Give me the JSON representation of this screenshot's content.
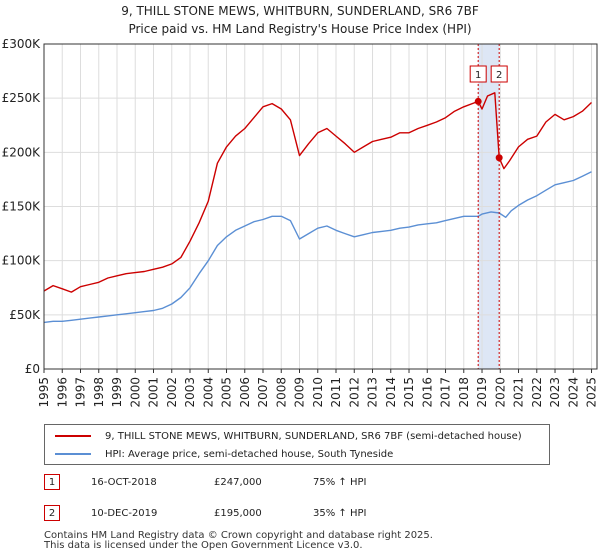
{
  "chart_data": {
    "type": "line",
    "title": "9, THILL STONE MEWS, WHITBURN, SUNDERLAND, SR6 7BF",
    "subtitle": "Price paid vs. HM Land Registry's House Price Index (HPI)",
    "xlim": [
      1995,
      2025.3
    ],
    "ylim": [
      0,
      300000
    ],
    "x_tick_labels": [
      "1995",
      "1996",
      "1997",
      "1998",
      "1999",
      "2000",
      "2001",
      "2002",
      "2003",
      "2004",
      "2005",
      "2006",
      "2007",
      "2008",
      "2009",
      "2010",
      "2011",
      "2012",
      "2013",
      "2014",
      "2015",
      "2016",
      "2017",
      "2018",
      "2019",
      "2020",
      "2021",
      "2022",
      "2023",
      "2024",
      "2025"
    ],
    "y_ticks": [
      0,
      50000,
      100000,
      150000,
      200000,
      250000,
      300000
    ],
    "y_tick_labels": [
      "£0",
      "£50K",
      "£100K",
      "£150K",
      "£200K",
      "£250K",
      "£300K"
    ],
    "sale_band": [
      2018.79,
      2019.94
    ],
    "series": [
      {
        "name": "9, THILL STONE MEWS, WHITBURN, SUNDERLAND, SR6 7BF (semi-detached house)",
        "color": "#cc0000",
        "points": [
          [
            1995.0,
            72000
          ],
          [
            1995.5,
            77000
          ],
          [
            1996.0,
            74000
          ],
          [
            1996.5,
            71000
          ],
          [
            1997.0,
            76000
          ],
          [
            1997.5,
            78000
          ],
          [
            1998.0,
            80000
          ],
          [
            1998.5,
            84000
          ],
          [
            1999.0,
            86000
          ],
          [
            1999.5,
            88000
          ],
          [
            2000.0,
            89000
          ],
          [
            2000.5,
            90000
          ],
          [
            2001.0,
            92000
          ],
          [
            2001.5,
            94000
          ],
          [
            2002.0,
            97000
          ],
          [
            2002.5,
            103000
          ],
          [
            2003.0,
            118000
          ],
          [
            2003.5,
            135000
          ],
          [
            2004.0,
            155000
          ],
          [
            2004.5,
            190000
          ],
          [
            2005.0,
            205000
          ],
          [
            2005.5,
            215000
          ],
          [
            2006.0,
            222000
          ],
          [
            2006.5,
            232000
          ],
          [
            2007.0,
            242000
          ],
          [
            2007.5,
            245000
          ],
          [
            2008.0,
            240000
          ],
          [
            2008.5,
            230000
          ],
          [
            2009.0,
            197000
          ],
          [
            2009.5,
            208000
          ],
          [
            2010.0,
            218000
          ],
          [
            2010.5,
            222000
          ],
          [
            2011.0,
            215000
          ],
          [
            2011.5,
            208000
          ],
          [
            2012.0,
            200000
          ],
          [
            2012.5,
            205000
          ],
          [
            2013.0,
            210000
          ],
          [
            2013.5,
            212000
          ],
          [
            2014.0,
            214000
          ],
          [
            2014.5,
            218000
          ],
          [
            2015.0,
            218000
          ],
          [
            2015.5,
            222000
          ],
          [
            2016.0,
            225000
          ],
          [
            2016.5,
            228000
          ],
          [
            2017.0,
            232000
          ],
          [
            2017.5,
            238000
          ],
          [
            2018.0,
            242000
          ],
          [
            2018.79,
            247000
          ],
          [
            2019.0,
            240000
          ],
          [
            2019.3,
            252000
          ],
          [
            2019.7,
            255000
          ],
          [
            2019.94,
            195000
          ],
          [
            2020.2,
            185000
          ],
          [
            2020.5,
            192000
          ],
          [
            2021.0,
            205000
          ],
          [
            2021.5,
            212000
          ],
          [
            2022.0,
            215000
          ],
          [
            2022.5,
            228000
          ],
          [
            2023.0,
            235000
          ],
          [
            2023.5,
            230000
          ],
          [
            2024.0,
            233000
          ],
          [
            2024.5,
            238000
          ],
          [
            2025.0,
            246000
          ]
        ]
      },
      {
        "name": "HPI: Average price, semi-detached house, South Tyneside",
        "color": "#5b8fd4",
        "points": [
          [
            1995.0,
            43000
          ],
          [
            1995.5,
            44000
          ],
          [
            1996.0,
            44000
          ],
          [
            1996.5,
            45000
          ],
          [
            1997.0,
            46000
          ],
          [
            1997.5,
            47000
          ],
          [
            1998.0,
            48000
          ],
          [
            1998.5,
            49000
          ],
          [
            1999.0,
            50000
          ],
          [
            1999.5,
            51000
          ],
          [
            2000.0,
            52000
          ],
          [
            2000.5,
            53000
          ],
          [
            2001.0,
            54000
          ],
          [
            2001.5,
            56000
          ],
          [
            2002.0,
            60000
          ],
          [
            2002.5,
            66000
          ],
          [
            2003.0,
            75000
          ],
          [
            2003.5,
            88000
          ],
          [
            2004.0,
            100000
          ],
          [
            2004.5,
            114000
          ],
          [
            2005.0,
            122000
          ],
          [
            2005.5,
            128000
          ],
          [
            2006.0,
            132000
          ],
          [
            2006.5,
            136000
          ],
          [
            2007.0,
            138000
          ],
          [
            2007.5,
            141000
          ],
          [
            2008.0,
            141000
          ],
          [
            2008.5,
            137000
          ],
          [
            2009.0,
            120000
          ],
          [
            2009.5,
            125000
          ],
          [
            2010.0,
            130000
          ],
          [
            2010.5,
            132000
          ],
          [
            2011.0,
            128000
          ],
          [
            2011.5,
            125000
          ],
          [
            2012.0,
            122000
          ],
          [
            2012.5,
            124000
          ],
          [
            2013.0,
            126000
          ],
          [
            2013.5,
            127000
          ],
          [
            2014.0,
            128000
          ],
          [
            2014.5,
            130000
          ],
          [
            2015.0,
            131000
          ],
          [
            2015.5,
            133000
          ],
          [
            2016.0,
            134000
          ],
          [
            2016.5,
            135000
          ],
          [
            2017.0,
            137000
          ],
          [
            2017.5,
            139000
          ],
          [
            2018.0,
            141000
          ],
          [
            2018.79,
            141000
          ],
          [
            2019.0,
            143000
          ],
          [
            2019.5,
            145000
          ],
          [
            2019.94,
            144000
          ],
          [
            2020.3,
            140000
          ],
          [
            2020.6,
            146000
          ],
          [
            2021.0,
            151000
          ],
          [
            2021.5,
            156000
          ],
          [
            2022.0,
            160000
          ],
          [
            2022.5,
            165000
          ],
          [
            2023.0,
            170000
          ],
          [
            2023.5,
            172000
          ],
          [
            2024.0,
            174000
          ],
          [
            2024.5,
            178000
          ],
          [
            2025.0,
            182000
          ]
        ]
      }
    ],
    "sales": [
      {
        "label": "1",
        "x": 2018.79,
        "price": 247000
      },
      {
        "label": "2",
        "x": 2019.94,
        "price": 195000
      }
    ]
  },
  "legend": {
    "property_label": "9, THILL STONE MEWS, WHITBURN, SUNDERLAND, SR6 7BF (semi-detached house)",
    "hpi_label": "HPI: Average price, semi-detached house, South Tyneside"
  },
  "transactions": [
    {
      "num": "1",
      "date": "16-OCT-2018",
      "price": "£247,000",
      "hpi": "75% ↑ HPI"
    },
    {
      "num": "2",
      "date": "10-DEC-2019",
      "price": "£195,000",
      "hpi": "35% ↑ HPI"
    }
  ],
  "footer": {
    "line1": "Contains HM Land Registry data © Crown copyright and database right 2025.",
    "line2": "This data is licensed under the Open Government Licence v3.0."
  },
  "colors": {
    "property": "#cc0000",
    "hpi": "#5b8fd4",
    "band": "#dde6f5",
    "grid": "#dddddd"
  }
}
